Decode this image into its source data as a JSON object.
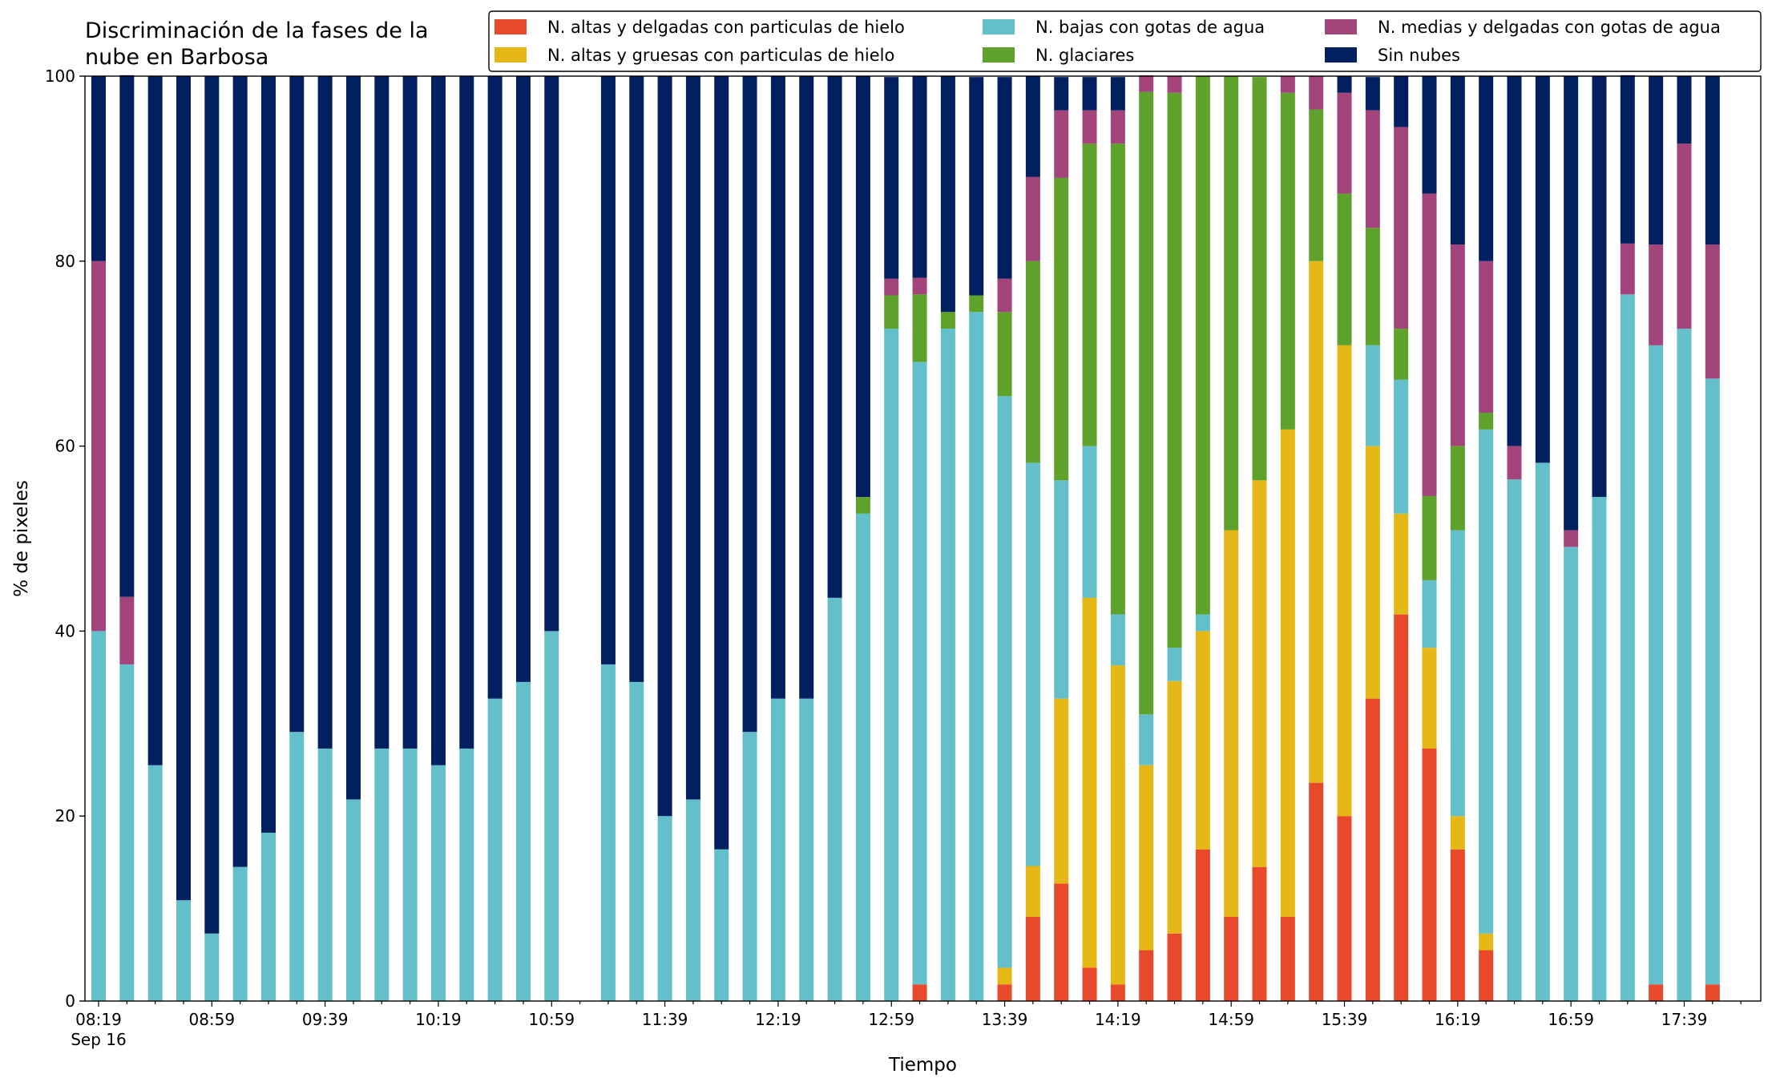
{
  "chart_data": {
    "type": "stacked_bar",
    "title": "Discriminación de la fases de la\nnube en Barbosa",
    "xlabel": "Tiempo",
    "ylabel": "% de pixeles",
    "x_sublabel": "Sep 16",
    "categories": [
      "08:19",
      null,
      null,
      null,
      "08:59",
      null,
      null,
      null,
      "09:39",
      null,
      null,
      null,
      "10:19",
      null,
      null,
      null,
      "10:59",
      null,
      null,
      null,
      "11:39",
      null,
      null,
      null,
      "12:19",
      null,
      null,
      null,
      "12:59",
      null,
      null,
      null,
      "13:39",
      null,
      null,
      null,
      "14:19",
      null,
      null,
      null,
      "14:59",
      null,
      null,
      null,
      "15:39",
      null,
      null,
      null,
      "16:19",
      null,
      null,
      null,
      "16:59",
      null,
      null,
      null,
      "17:39",
      null
    ],
    "ylim": [
      0,
      100
    ],
    "yticks": [
      0,
      20,
      40,
      60,
      80,
      100
    ],
    "series": [
      {
        "name": "N. altas y delgadas con particulas de hielo",
        "color": "#e8492a",
        "values": [
          0,
          0,
          0,
          0,
          0,
          0,
          0,
          0,
          0,
          0,
          0,
          0,
          0,
          0,
          0,
          0,
          0,
          null,
          0,
          0,
          0,
          0,
          0,
          0,
          0,
          0,
          0,
          0,
          0,
          1.8,
          0,
          0,
          1.8,
          9.1,
          12.7,
          3.6,
          1.8,
          5.5,
          7.3,
          16.4,
          9.1,
          14.5,
          9.1,
          23.6,
          20,
          32.7,
          41.8,
          27.3,
          16.4,
          5.5,
          0,
          0,
          0,
          0,
          0,
          1.8,
          0,
          1.8
        ]
      },
      {
        "name": "N. altas y gruesas con particulas de hielo",
        "color": "#e6b817",
        "values": [
          0,
          0,
          0,
          0,
          0,
          0,
          0,
          0,
          0,
          0,
          0,
          0,
          0,
          0,
          0,
          0,
          0,
          null,
          0,
          0,
          0,
          0,
          0,
          0,
          0,
          0,
          0,
          0,
          0,
          0,
          0,
          0,
          1.8,
          5.5,
          20,
          40,
          34.5,
          20,
          27.3,
          23.6,
          41.8,
          41.8,
          52.7,
          56.4,
          50.9,
          27.3,
          10.9,
          10.9,
          3.6,
          1.8,
          0,
          0,
          0,
          0,
          0,
          0,
          0,
          0
        ]
      },
      {
        "name": "N. bajas con gotas de agua",
        "color": "#63bfca",
        "values": [
          40,
          36.4,
          25.5,
          10.9,
          7.3,
          14.5,
          18.2,
          29.1,
          27.3,
          21.8,
          27.3,
          27.3,
          25.5,
          27.3,
          32.7,
          34.5,
          40,
          null,
          36.4,
          34.5,
          20,
          21.8,
          16.4,
          29.1,
          32.7,
          32.7,
          43.6,
          52.7,
          72.7,
          67.3,
          72.7,
          74.5,
          61.8,
          43.6,
          23.6,
          16.4,
          5.5,
          5.5,
          3.6,
          1.8,
          0,
          0,
          0,
          0,
          0,
          10.9,
          14.5,
          7.3,
          30.9,
          54.5,
          56.4,
          58.2,
          49.1,
          54.5,
          76.4,
          69.1,
          72.7,
          65.5
        ]
      },
      {
        "name": "N. glaciares",
        "color": "#5ea12b",
        "values": [
          0,
          0,
          0,
          0,
          0,
          0,
          0,
          0,
          0,
          0,
          0,
          0,
          0,
          0,
          0,
          0,
          0,
          null,
          0,
          0,
          0,
          0,
          0,
          0,
          0,
          0,
          0,
          1.8,
          3.6,
          7.3,
          1.8,
          1.8,
          9.1,
          21.8,
          32.7,
          32.7,
          50.9,
          67.3,
          60,
          58.2,
          49.1,
          43.6,
          36.4,
          16.4,
          16.4,
          12.7,
          5.5,
          9.1,
          9.1,
          1.8,
          0,
          0,
          0,
          0,
          0,
          0,
          0,
          0
        ]
      },
      {
        "name": "N. medias y delgadas con gotas de agua",
        "color": "#a3457b",
        "values": [
          40,
          7.3,
          0,
          0,
          0,
          0,
          0,
          0,
          0,
          0,
          0,
          0,
          0,
          0,
          0,
          0,
          0,
          null,
          0,
          0,
          0,
          0,
          0,
          0,
          0,
          0,
          0,
          0,
          1.8,
          1.8,
          0,
          0,
          3.6,
          9.1,
          7.3,
          3.6,
          3.6,
          1.8,
          1.8,
          0,
          0,
          0,
          1.8,
          3.6,
          10.9,
          12.7,
          21.8,
          32.7,
          21.8,
          16.4,
          3.6,
          0,
          1.8,
          0,
          5.5,
          10.9,
          20,
          14.5
        ]
      },
      {
        "name": "Sin nubes",
        "color": "#021f5f",
        "values": [
          20,
          56.4,
          74.5,
          89.1,
          92.7,
          85.5,
          81.8,
          70.9,
          72.7,
          78.2,
          72.7,
          72.7,
          74.5,
          72.7,
          67.3,
          65.5,
          60,
          null,
          63.6,
          65.5,
          80,
          78.2,
          83.6,
          70.9,
          67.3,
          67.3,
          56.4,
          45.5,
          21.8,
          21.8,
          25.5,
          23.6,
          21.8,
          10.9,
          3.6,
          3.6,
          3.6,
          0,
          0,
          0,
          0,
          0,
          0,
          0,
          1.8,
          3.6,
          5.5,
          12.7,
          18.2,
          20,
          40,
          41.8,
          49.1,
          45.5,
          18.2,
          18.2,
          7.3,
          18.2
        ]
      }
    ]
  }
}
